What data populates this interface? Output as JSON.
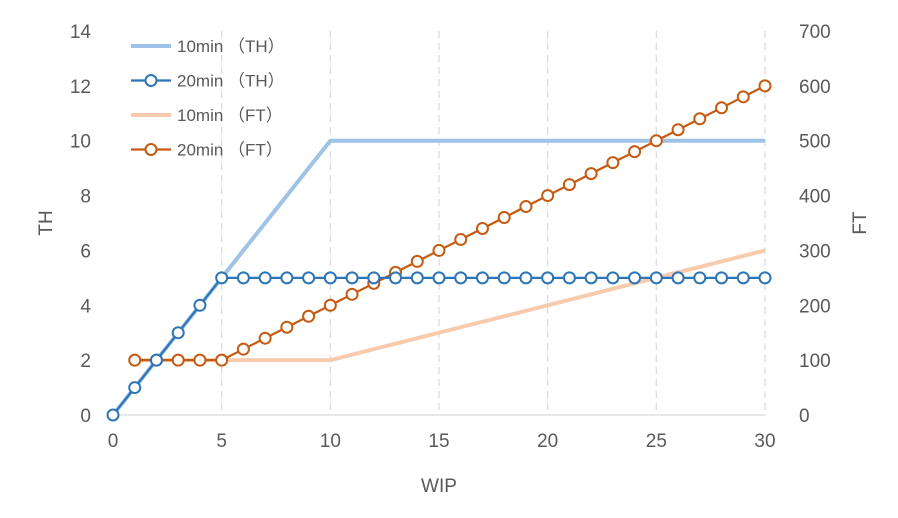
{
  "chart_data": {
    "type": "line",
    "xlabel": "WIP",
    "ylabel": "TH",
    "y2label": "FT",
    "xlim": [
      0,
      30
    ],
    "ylim": [
      0,
      14
    ],
    "y2lim": [
      0,
      700
    ],
    "xticks": [
      0,
      5,
      10,
      15,
      20,
      25,
      30
    ],
    "yticks": [
      0,
      2,
      4,
      6,
      8,
      10,
      12,
      14
    ],
    "y2ticks": [
      0,
      100,
      200,
      300,
      400,
      500,
      600,
      700
    ],
    "grid": "vertical",
    "legend_position": "top-left",
    "series": [
      {
        "name": "10min （TH）",
        "axis": "left",
        "color": "#9dc3e6",
        "marker": "none",
        "x": [
          0,
          1,
          2,
          3,
          4,
          5,
          6,
          7,
          8,
          9,
          10,
          11,
          12,
          13,
          14,
          15,
          16,
          17,
          18,
          19,
          20,
          21,
          22,
          23,
          24,
          25,
          26,
          27,
          28,
          29,
          30
        ],
        "y": [
          0,
          1,
          2,
          3,
          4,
          5,
          6,
          7,
          8,
          9,
          10,
          10,
          10,
          10,
          10,
          10,
          10,
          10,
          10,
          10,
          10,
          10,
          10,
          10,
          10,
          10,
          10,
          10,
          10,
          10,
          10
        ]
      },
      {
        "name": "20min （TH）",
        "axis": "left",
        "color": "#2e75b6",
        "marker": "circle",
        "x": [
          0,
          1,
          2,
          3,
          4,
          5,
          6,
          7,
          8,
          9,
          10,
          11,
          12,
          13,
          14,
          15,
          16,
          17,
          18,
          19,
          20,
          21,
          22,
          23,
          24,
          25,
          26,
          27,
          28,
          29,
          30
        ],
        "y": [
          0,
          1,
          2,
          3,
          4,
          5,
          5,
          5,
          5,
          5,
          5,
          5,
          5,
          5,
          5,
          5,
          5,
          5,
          5,
          5,
          5,
          5,
          5,
          5,
          5,
          5,
          5,
          5,
          5,
          5,
          5
        ]
      },
      {
        "name": "10min （FT）",
        "axis": "right",
        "color": "#f8cbad",
        "marker": "none",
        "x": [
          1,
          2,
          3,
          4,
          5,
          6,
          7,
          8,
          9,
          10,
          11,
          12,
          13,
          14,
          15,
          16,
          17,
          18,
          19,
          20,
          21,
          22,
          23,
          24,
          25,
          26,
          27,
          28,
          29,
          30
        ],
        "y": [
          100,
          100,
          100,
          100,
          100,
          100,
          100,
          100,
          100,
          100,
          110,
          120,
          130,
          140,
          150,
          160,
          170,
          180,
          190,
          200,
          210,
          220,
          230,
          240,
          250,
          260,
          270,
          280,
          290,
          300
        ]
      },
      {
        "name": "20min （FT）",
        "axis": "right",
        "color": "#c55a11",
        "marker": "circle",
        "x": [
          1,
          2,
          3,
          4,
          5,
          6,
          7,
          8,
          9,
          10,
          11,
          12,
          13,
          14,
          15,
          16,
          17,
          18,
          19,
          20,
          21,
          22,
          23,
          24,
          25,
          26,
          27,
          28,
          29,
          30
        ],
        "y": [
          100,
          100,
          100,
          100,
          100,
          120,
          140,
          160,
          180,
          200,
          220,
          240,
          260,
          280,
          300,
          320,
          340,
          360,
          380,
          400,
          420,
          440,
          460,
          480,
          500,
          520,
          540,
          560,
          580,
          600
        ]
      }
    ]
  }
}
